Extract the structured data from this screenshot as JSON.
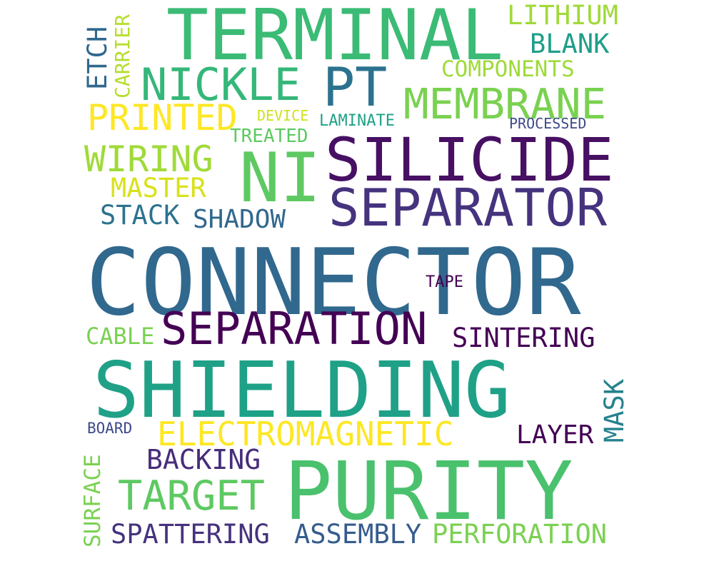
{
  "word_cloud": {
    "words": [
      {
        "text": "CONNECTOR",
        "color": "#31688e"
      },
      {
        "text": "SHIELDING",
        "color": "#1fa187"
      },
      {
        "text": "PURITY",
        "color": "#4ac16d"
      },
      {
        "text": "TERMINAL",
        "color": "#3bbb75"
      },
      {
        "text": "SILICIDE",
        "color": "#471063"
      },
      {
        "text": "NI",
        "color": "#5ec962"
      },
      {
        "text": "SEPARATOR",
        "color": "#46337e"
      },
      {
        "text": "PT",
        "color": "#2c728e"
      },
      {
        "text": "SEPARATION",
        "color": "#440154"
      },
      {
        "text": "ELECTROMAGNETIC",
        "color": "#fde725"
      },
      {
        "text": "NICKLE",
        "color": "#35b779"
      },
      {
        "text": "MEMBRANE",
        "color": "#7ad151"
      },
      {
        "text": "TARGET",
        "color": "#5ec962"
      },
      {
        "text": "PRINTED",
        "color": "#fde725"
      },
      {
        "text": "WIRING",
        "color": "#a0da39"
      },
      {
        "text": "SINTERING",
        "color": "#440154"
      },
      {
        "text": "SPATTERING",
        "color": "#46327e"
      },
      {
        "text": "ASSEMBLY",
        "color": "#365c8d"
      },
      {
        "text": "PERFORATION",
        "color": "#7ad151"
      },
      {
        "text": "BACKING",
        "color": "#472d7b"
      },
      {
        "text": "LAYER",
        "color": "#440154"
      },
      {
        "text": "SHADOW",
        "color": "#31688e"
      },
      {
        "text": "STACK",
        "color": "#2c728e"
      },
      {
        "text": "MASTER",
        "color": "#d8e219"
      },
      {
        "text": "LITHIUM",
        "color": "#a0da39"
      },
      {
        "text": "BLANK",
        "color": "#1f9e89"
      },
      {
        "text": "COMPONENTS",
        "color": "#9fda3a"
      },
      {
        "text": "CABLE",
        "color": "#7ad151"
      },
      {
        "text": "TREATED",
        "color": "#5ec962"
      },
      {
        "text": "LAMINATE",
        "color": "#1fa187"
      },
      {
        "text": "DEVICE",
        "color": "#d0e11c"
      },
      {
        "text": "PROCESSED",
        "color": "#3e4a89"
      },
      {
        "text": "TAPE",
        "color": "#440154"
      },
      {
        "text": "BOARD",
        "color": "#3e4a89"
      },
      {
        "text": "ETCH",
        "color": "#31688e"
      },
      {
        "text": "CARRIER",
        "color": "#b5de2b"
      },
      {
        "text": "MASK",
        "color": "#26828e"
      },
      {
        "text": "SURFACE",
        "color": "#7ad151"
      }
    ]
  }
}
